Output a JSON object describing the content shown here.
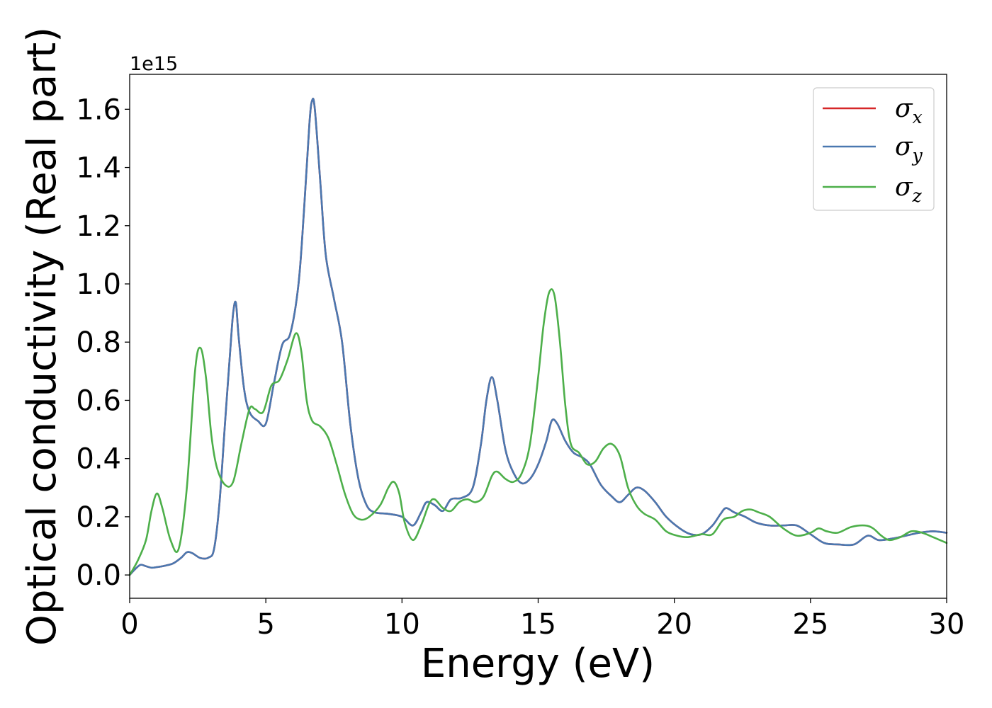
{
  "chart_data": {
    "type": "line",
    "xlabel": "Energy (eV)",
    "ylabel": "Optical conductivity (Real part)",
    "y_offset_label": "1e15",
    "xlim": [
      0,
      30
    ],
    "ylim": [
      -0.08,
      1.72
    ],
    "x_ticks": [
      0,
      5,
      10,
      15,
      20,
      25,
      30
    ],
    "x_tick_labels": [
      "0",
      "5",
      "10",
      "15",
      "20",
      "25",
      "30"
    ],
    "y_ticks": [
      0.0,
      0.2,
      0.4,
      0.6,
      0.8,
      1.0,
      1.2,
      1.4,
      1.6
    ],
    "y_tick_labels": [
      "0.0",
      "0.2",
      "0.4",
      "0.6",
      "0.8",
      "1.0",
      "1.2",
      "1.4",
      "1.6"
    ],
    "grid": false,
    "legend_position": "top-right",
    "series": [
      {
        "name": "σx",
        "legend_symbol": "σ",
        "legend_sub": "x",
        "color": "#d62728",
        "x": [
          0,
          0.2,
          0.4,
          0.6,
          0.8,
          1.0,
          1.3,
          1.6,
          1.9,
          2.1,
          2.3,
          2.6,
          2.9,
          3.1,
          3.3,
          3.5,
          3.7,
          3.8,
          3.9,
          4.0,
          4.2,
          4.4,
          4.7,
          5.0,
          5.3,
          5.6,
          5.9,
          6.2,
          6.4,
          6.6,
          6.7,
          6.8,
          7.0,
          7.2,
          7.5,
          7.8,
          8.1,
          8.4,
          8.7,
          9.0,
          9.5,
          10.0,
          10.4,
          10.7,
          10.9,
          11.2,
          11.5,
          11.8,
          12.2,
          12.6,
          12.9,
          13.1,
          13.3,
          13.5,
          13.8,
          14.1,
          14.4,
          14.7,
          15.0,
          15.3,
          15.5,
          15.7,
          16.0,
          16.3,
          16.6,
          16.9,
          17.3,
          17.7,
          18.0,
          18.3,
          18.6,
          18.9,
          19.3,
          19.7,
          20.2,
          20.6,
          21.0,
          21.4,
          21.7,
          21.9,
          22.2,
          22.6,
          23.0,
          23.5,
          24.0,
          24.5,
          25.0,
          25.5,
          26.0,
          26.6,
          27.1,
          27.5,
          28.0,
          28.5,
          29.0,
          29.5,
          30.0
        ],
        "y": [
          0.0,
          0.02,
          0.035,
          0.03,
          0.025,
          0.027,
          0.032,
          0.04,
          0.06,
          0.078,
          0.075,
          0.058,
          0.06,
          0.09,
          0.25,
          0.52,
          0.78,
          0.9,
          0.935,
          0.82,
          0.64,
          0.56,
          0.53,
          0.52,
          0.66,
          0.79,
          0.83,
          1.0,
          1.25,
          1.55,
          1.63,
          1.6,
          1.35,
          1.1,
          0.95,
          0.8,
          0.52,
          0.33,
          0.24,
          0.215,
          0.21,
          0.2,
          0.17,
          0.215,
          0.25,
          0.24,
          0.22,
          0.26,
          0.265,
          0.3,
          0.45,
          0.6,
          0.68,
          0.6,
          0.43,
          0.35,
          0.315,
          0.33,
          0.38,
          0.46,
          0.53,
          0.52,
          0.46,
          0.42,
          0.405,
          0.38,
          0.31,
          0.27,
          0.25,
          0.275,
          0.3,
          0.29,
          0.25,
          0.2,
          0.16,
          0.14,
          0.14,
          0.17,
          0.21,
          0.23,
          0.215,
          0.2,
          0.18,
          0.17,
          0.17,
          0.17,
          0.14,
          0.11,
          0.105,
          0.105,
          0.135,
          0.12,
          0.125,
          0.135,
          0.145,
          0.15,
          0.145
        ]
      },
      {
        "name": "σy",
        "legend_symbol": "σ",
        "legend_sub": "y",
        "color": "#4a78b0",
        "x": [
          0,
          0.2,
          0.4,
          0.6,
          0.8,
          1.0,
          1.3,
          1.6,
          1.9,
          2.1,
          2.3,
          2.6,
          2.9,
          3.1,
          3.3,
          3.5,
          3.7,
          3.8,
          3.9,
          4.0,
          4.2,
          4.4,
          4.7,
          5.0,
          5.3,
          5.6,
          5.9,
          6.2,
          6.4,
          6.6,
          6.7,
          6.8,
          7.0,
          7.2,
          7.5,
          7.8,
          8.1,
          8.4,
          8.7,
          9.0,
          9.5,
          10.0,
          10.4,
          10.7,
          10.9,
          11.2,
          11.5,
          11.8,
          12.2,
          12.6,
          12.9,
          13.1,
          13.3,
          13.5,
          13.8,
          14.1,
          14.4,
          14.7,
          15.0,
          15.3,
          15.5,
          15.7,
          16.0,
          16.3,
          16.6,
          16.9,
          17.3,
          17.7,
          18.0,
          18.3,
          18.6,
          18.9,
          19.3,
          19.7,
          20.2,
          20.6,
          21.0,
          21.4,
          21.7,
          21.9,
          22.2,
          22.6,
          23.0,
          23.5,
          24.0,
          24.5,
          25.0,
          25.5,
          26.0,
          26.6,
          27.1,
          27.5,
          28.0,
          28.5,
          29.0,
          29.5,
          30.0
        ],
        "y": [
          0.0,
          0.02,
          0.035,
          0.03,
          0.025,
          0.027,
          0.032,
          0.04,
          0.06,
          0.078,
          0.075,
          0.058,
          0.06,
          0.09,
          0.25,
          0.52,
          0.78,
          0.9,
          0.935,
          0.82,
          0.64,
          0.56,
          0.53,
          0.52,
          0.66,
          0.79,
          0.83,
          1.0,
          1.25,
          1.55,
          1.63,
          1.6,
          1.35,
          1.1,
          0.95,
          0.8,
          0.52,
          0.33,
          0.24,
          0.215,
          0.21,
          0.2,
          0.17,
          0.215,
          0.25,
          0.24,
          0.22,
          0.26,
          0.265,
          0.3,
          0.45,
          0.6,
          0.68,
          0.6,
          0.43,
          0.35,
          0.315,
          0.33,
          0.38,
          0.46,
          0.53,
          0.52,
          0.46,
          0.42,
          0.405,
          0.38,
          0.31,
          0.27,
          0.25,
          0.275,
          0.3,
          0.29,
          0.25,
          0.2,
          0.16,
          0.14,
          0.14,
          0.17,
          0.21,
          0.23,
          0.215,
          0.2,
          0.18,
          0.17,
          0.17,
          0.17,
          0.14,
          0.11,
          0.105,
          0.105,
          0.135,
          0.12,
          0.125,
          0.135,
          0.145,
          0.15,
          0.145
        ]
      },
      {
        "name": "σz",
        "legend_symbol": "σ",
        "legend_sub": "z",
        "color": "#4daf4a",
        "x": [
          0,
          0.3,
          0.6,
          0.8,
          1.0,
          1.2,
          1.5,
          1.8,
          2.1,
          2.4,
          2.6,
          2.8,
          3.0,
          3.2,
          3.5,
          3.8,
          4.1,
          4.4,
          4.6,
          4.9,
          5.2,
          5.5,
          5.8,
          6.1,
          6.3,
          6.5,
          6.7,
          7.0,
          7.3,
          7.6,
          7.9,
          8.2,
          8.5,
          8.8,
          9.2,
          9.5,
          9.7,
          9.9,
          10.1,
          10.4,
          10.7,
          11.0,
          11.2,
          11.5,
          11.8,
          12.1,
          12.4,
          12.7,
          13.0,
          13.3,
          13.5,
          13.8,
          14.1,
          14.4,
          14.7,
          15.0,
          15.2,
          15.4,
          15.6,
          15.8,
          16.0,
          16.2,
          16.5,
          16.8,
          17.1,
          17.4,
          17.7,
          18.0,
          18.3,
          18.6,
          18.9,
          19.3,
          19.7,
          20.1,
          20.5,
          21.0,
          21.4,
          21.8,
          22.2,
          22.5,
          22.8,
          23.1,
          23.5,
          24.0,
          24.5,
          25.0,
          25.3,
          25.6,
          26.0,
          26.5,
          27.0,
          27.3,
          27.6,
          27.9,
          28.3,
          28.7,
          29.1,
          29.5,
          30.0
        ],
        "y": [
          0.0,
          0.05,
          0.12,
          0.22,
          0.28,
          0.23,
          0.12,
          0.09,
          0.3,
          0.7,
          0.78,
          0.68,
          0.48,
          0.37,
          0.31,
          0.32,
          0.45,
          0.57,
          0.57,
          0.56,
          0.65,
          0.67,
          0.74,
          0.83,
          0.77,
          0.6,
          0.53,
          0.51,
          0.47,
          0.38,
          0.28,
          0.21,
          0.19,
          0.2,
          0.24,
          0.3,
          0.32,
          0.28,
          0.18,
          0.12,
          0.17,
          0.245,
          0.26,
          0.23,
          0.22,
          0.25,
          0.26,
          0.25,
          0.27,
          0.34,
          0.355,
          0.33,
          0.32,
          0.35,
          0.45,
          0.68,
          0.86,
          0.97,
          0.96,
          0.8,
          0.58,
          0.45,
          0.42,
          0.38,
          0.39,
          0.435,
          0.45,
          0.41,
          0.3,
          0.24,
          0.21,
          0.19,
          0.15,
          0.135,
          0.13,
          0.14,
          0.14,
          0.19,
          0.2,
          0.22,
          0.225,
          0.215,
          0.2,
          0.16,
          0.135,
          0.145,
          0.16,
          0.15,
          0.145,
          0.165,
          0.17,
          0.16,
          0.135,
          0.12,
          0.13,
          0.15,
          0.145,
          0.13,
          0.11
        ]
      }
    ]
  }
}
